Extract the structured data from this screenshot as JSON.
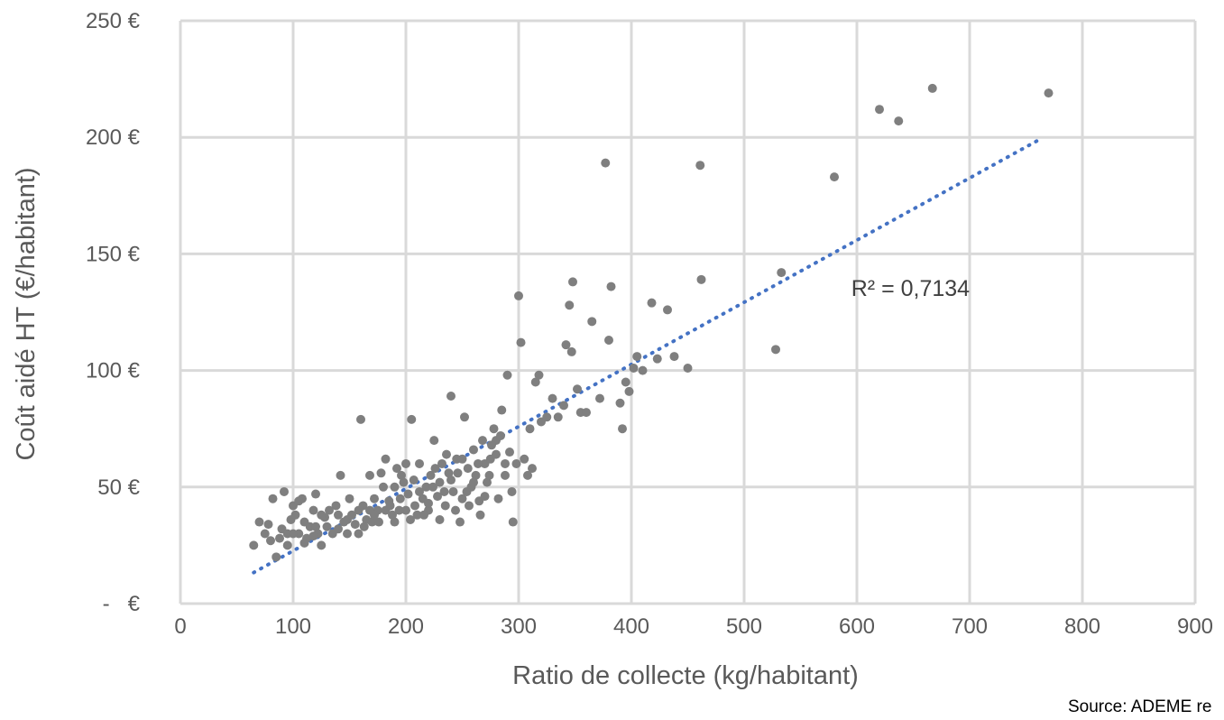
{
  "chart_data": {
    "type": "scatter",
    "xlabel": "Ratio de collecte (kg/habitant)",
    "ylabel": "Coût aidé HT (€/habitant)",
    "xlim": [
      0,
      900
    ],
    "ylim": [
      0,
      250
    ],
    "x_ticks": [
      0,
      100,
      200,
      300,
      400,
      500,
      600,
      700,
      800,
      900
    ],
    "x_tick_labels": [
      "0",
      "100",
      "200",
      "300",
      "400",
      "500",
      "600",
      "700",
      "800",
      "900"
    ],
    "y_ticks": [
      0,
      50,
      100,
      150,
      200,
      250
    ],
    "y_tick_labels": [
      "-   €",
      "50 €",
      "100 €",
      "150 €",
      "200 €",
      "250 €"
    ],
    "grid": true,
    "colors": {
      "points": "#7f7f7f",
      "trendline": "#4472c4",
      "grid": "#d9d9d9"
    },
    "series": [
      {
        "points": [
          [
            65,
            25
          ],
          [
            70,
            35
          ],
          [
            78,
            34
          ],
          [
            82,
            45
          ],
          [
            85,
            20
          ],
          [
            88,
            28
          ],
          [
            90,
            32
          ],
          [
            92,
            48
          ],
          [
            95,
            30
          ],
          [
            98,
            36
          ],
          [
            100,
            42
          ],
          [
            102,
            38
          ],
          [
            105,
            30
          ],
          [
            108,
            45
          ],
          [
            110,
            35
          ],
          [
            112,
            28
          ],
          [
            115,
            33
          ],
          [
            118,
            40
          ],
          [
            120,
            47
          ],
          [
            122,
            30
          ],
          [
            125,
            25
          ],
          [
            128,
            37
          ],
          [
            130,
            33
          ],
          [
            135,
            30
          ],
          [
            138,
            42
          ],
          [
            140,
            38
          ],
          [
            142,
            55
          ],
          [
            145,
            35
          ],
          [
            148,
            30
          ],
          [
            150,
            45
          ],
          [
            155,
            34
          ],
          [
            158,
            40
          ],
          [
            160,
            79
          ],
          [
            162,
            42
          ],
          [
            165,
            36
          ],
          [
            168,
            55
          ],
          [
            170,
            35
          ],
          [
            172,
            45
          ],
          [
            175,
            40
          ],
          [
            178,
            56
          ],
          [
            180,
            50
          ],
          [
            182,
            62
          ],
          [
            185,
            44
          ],
          [
            188,
            38
          ],
          [
            190,
            50
          ],
          [
            192,
            58
          ],
          [
            195,
            45
          ],
          [
            198,
            52
          ],
          [
            200,
            40
          ],
          [
            202,
            47
          ],
          [
            205,
            79
          ],
          [
            207,
            53
          ],
          [
            210,
            38
          ],
          [
            212,
            60
          ],
          [
            215,
            45
          ],
          [
            218,
            50
          ],
          [
            220,
            40
          ],
          [
            222,
            55
          ],
          [
            225,
            70
          ],
          [
            228,
            46
          ],
          [
            230,
            52
          ],
          [
            232,
            60
          ],
          [
            235,
            42
          ],
          [
            238,
            56
          ],
          [
            240,
            89
          ],
          [
            242,
            48
          ],
          [
            245,
            62
          ],
          [
            248,
            35
          ],
          [
            250,
            45
          ],
          [
            252,
            80
          ],
          [
            255,
            58
          ],
          [
            258,
            50
          ],
          [
            260,
            66
          ],
          [
            262,
            55
          ],
          [
            265,
            44
          ],
          [
            268,
            70
          ],
          [
            270,
            60
          ],
          [
            272,
            52
          ],
          [
            275,
            62
          ],
          [
            278,
            75
          ],
          [
            280,
            70
          ],
          [
            282,
            45
          ],
          [
            285,
            83
          ],
          [
            288,
            55
          ],
          [
            290,
            98
          ],
          [
            292,
            65
          ],
          [
            295,
            35
          ],
          [
            298,
            60
          ],
          [
            300,
            132
          ],
          [
            302,
            112
          ],
          [
            305,
            62
          ],
          [
            308,
            55
          ],
          [
            310,
            75
          ],
          [
            312,
            58
          ],
          [
            315,
            95
          ],
          [
            318,
            98
          ],
          [
            320,
            78
          ],
          [
            325,
            80
          ],
          [
            330,
            88
          ],
          [
            335,
            80
          ],
          [
            340,
            85
          ],
          [
            342,
            111
          ],
          [
            345,
            128
          ],
          [
            347,
            108
          ],
          [
            348,
            138
          ],
          [
            352,
            92
          ],
          [
            355,
            82
          ],
          [
            360,
            82
          ],
          [
            365,
            121
          ],
          [
            372,
            88
          ],
          [
            377,
            189
          ],
          [
            380,
            113
          ],
          [
            382,
            136
          ],
          [
            390,
            86
          ],
          [
            392,
            75
          ],
          [
            395,
            95
          ],
          [
            398,
            91
          ],
          [
            402,
            101
          ],
          [
            405,
            106
          ],
          [
            410,
            100
          ],
          [
            418,
            129
          ],
          [
            423,
            105
          ],
          [
            432,
            126
          ],
          [
            438,
            106
          ],
          [
            450,
            101
          ],
          [
            461,
            188
          ],
          [
            462,
            139
          ],
          [
            528,
            109
          ],
          [
            533,
            142
          ],
          [
            580,
            183
          ],
          [
            620,
            212
          ],
          [
            637,
            207
          ],
          [
            667,
            221
          ],
          [
            770,
            219
          ],
          [
            75,
            30
          ],
          [
            80,
            27
          ],
          [
            95,
            25
          ],
          [
            100,
            30
          ],
          [
            105,
            44
          ],
          [
            110,
            26
          ],
          [
            118,
            29
          ],
          [
            120,
            33
          ],
          [
            125,
            38
          ],
          [
            132,
            40
          ],
          [
            140,
            32
          ],
          [
            148,
            36
          ],
          [
            152,
            38
          ],
          [
            158,
            30
          ],
          [
            163,
            33
          ],
          [
            168,
            40
          ],
          [
            172,
            38
          ],
          [
            176,
            35
          ],
          [
            182,
            40
          ],
          [
            186,
            42
          ],
          [
            190,
            35
          ],
          [
            194,
            40
          ],
          [
            196,
            55
          ],
          [
            200,
            60
          ],
          [
            204,
            36
          ],
          [
            208,
            42
          ],
          [
            212,
            48
          ],
          [
            216,
            38
          ],
          [
            220,
            43
          ],
          [
            224,
            50
          ],
          [
            226,
            58
          ],
          [
            230,
            36
          ],
          [
            234,
            48
          ],
          [
            236,
            64
          ],
          [
            240,
            53
          ],
          [
            244,
            40
          ],
          [
            246,
            56
          ],
          [
            250,
            62
          ],
          [
            254,
            48
          ],
          [
            256,
            42
          ],
          [
            260,
            52
          ],
          [
            264,
            60
          ],
          [
            266,
            38
          ],
          [
            270,
            46
          ],
          [
            274,
            55
          ],
          [
            276,
            68
          ],
          [
            280,
            64
          ],
          [
            284,
            72
          ],
          [
            288,
            60
          ],
          [
            294,
            48
          ]
        ]
      }
    ],
    "trendline": {
      "type": "linear",
      "x_start": 65,
      "x_end": 762,
      "slope": 0.2665,
      "intercept": -4.0
    },
    "annotations": [
      {
        "text": "R² = 0,7134",
        "x": 595,
        "y": 132
      }
    ],
    "source_text": "Source: ADEME re"
  }
}
